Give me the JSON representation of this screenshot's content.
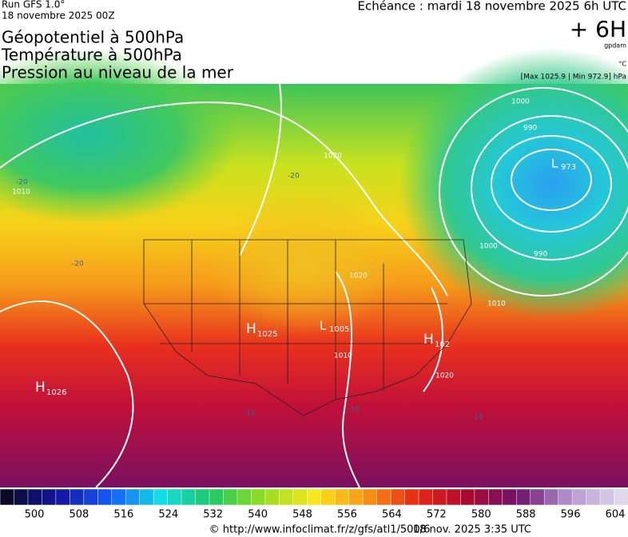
{
  "header": {
    "run": "Run GFS 1.0°",
    "date": "18 novembre 2025 00Z",
    "echeance": "Echéance : mardi 18 novembre 2025 6h UTC",
    "titles": [
      "Géopotentiel à 500hPa",
      "Température à 500hPa",
      "Pression au niveau de la mer"
    ],
    "lead": "+ 6H",
    "unit_geo": "gpdam",
    "unit_temp": "°C",
    "extremes": "[Max 1025.9 | Min 972.9] hPa"
  },
  "map": {
    "highs": [
      {
        "symbol": "H",
        "value": "1026"
      },
      {
        "symbol": "H",
        "value": "1025"
      },
      {
        "symbol": "H",
        "value": "102"
      }
    ],
    "lows": [
      {
        "symbol": "L",
        "value": "1005"
      },
      {
        "symbol": "L",
        "value": "973"
      }
    ],
    "isobar_labels": [
      "1010",
      "1020",
      "1020",
      "990",
      "1000",
      "1010",
      "1020",
      "1010",
      "1000",
      "990"
    ],
    "temp_labels": [
      "-20",
      "-10",
      "-10",
      "-10",
      "-20",
      "-20"
    ]
  },
  "colorbar": {
    "labels": [
      "500",
      "508",
      "516",
      "524",
      "532",
      "540",
      "548",
      "556",
      "564",
      "572",
      "580",
      "588",
      "596",
      "604"
    ]
  },
  "footer": {
    "url": "© http://www.infoclimat.fr/z/gfs/atl1/500/6",
    "timestamp": "18 nov. 2025  3:35 UTC"
  }
}
